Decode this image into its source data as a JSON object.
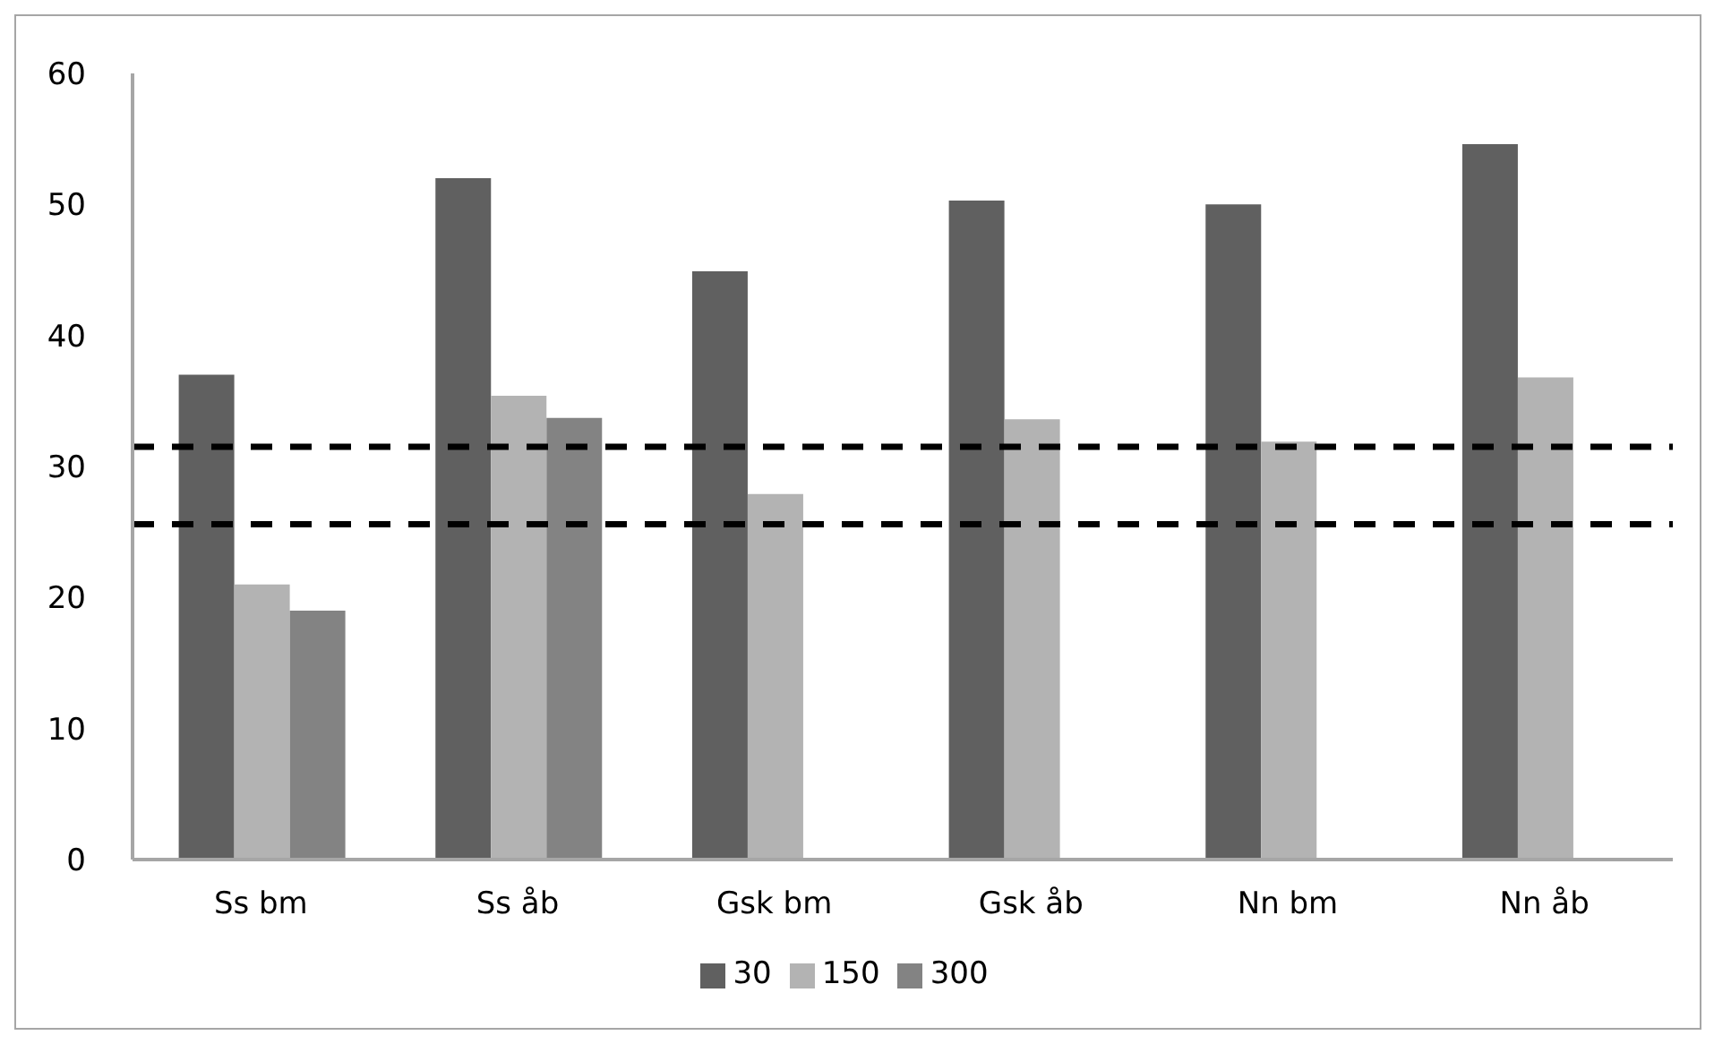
{
  "chart_data": {
    "type": "bar",
    "categories": [
      "Ss bm",
      "Ss åb",
      "Gsk bm",
      "Gsk åb",
      "Nn bm",
      "Nn åb"
    ],
    "series": [
      {
        "name": "30",
        "color": "#606060",
        "values": [
          37,
          52,
          44.9,
          50.3,
          50,
          54.6
        ]
      },
      {
        "name": "150",
        "color": "#b3b3b3",
        "values": [
          21,
          35.4,
          27.9,
          33.6,
          31.9,
          36.8
        ]
      },
      {
        "name": "300",
        "color": "#838383",
        "values": [
          19,
          33.7,
          null,
          null,
          null,
          null
        ]
      }
    ],
    "ylim": [
      0,
      60
    ],
    "yticks": [
      0,
      10,
      20,
      30,
      40,
      50,
      60
    ],
    "grid": false,
    "legend": "bottom",
    "ref_lines": [
      {
        "axis": "y",
        "value": 31.5,
        "color": "#000000",
        "line_style": "dashed"
      },
      {
        "axis": "y",
        "value": 25.6,
        "color": "#000000",
        "line_style": "dashed"
      }
    ]
  }
}
